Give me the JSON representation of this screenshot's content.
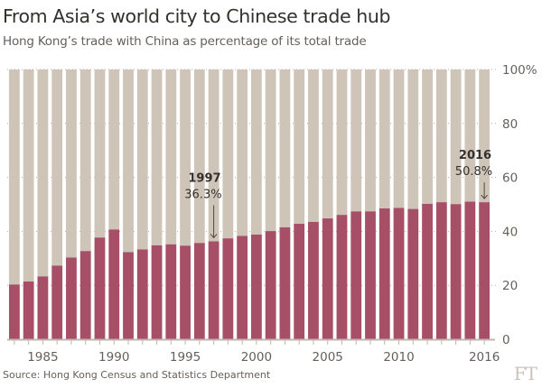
{
  "title": "From Asia’s world city to Chinese trade hub",
  "subtitle": "Hong Kong’s trade with China as percentage of its total trade",
  "source": "Source: Hong Kong Census and Statistics Department",
  "logo": "FT",
  "colors": {
    "china": "#a64f66",
    "rest": "#cec5b8",
    "axis": "#bfb7b0",
    "grid": "#b3aba4"
  },
  "chart_data": {
    "type": "bar",
    "stacked_to_100": true,
    "categories": [
      1983,
      1984,
      1985,
      1986,
      1987,
      1988,
      1989,
      1990,
      1991,
      1992,
      1993,
      1994,
      1995,
      1996,
      1997,
      1998,
      1999,
      2000,
      2001,
      2002,
      2003,
      2004,
      2005,
      2006,
      2007,
      2008,
      2009,
      2010,
      2011,
      2012,
      2013,
      2014,
      2015,
      2016
    ],
    "values": [
      20.3,
      21.4,
      23.3,
      27.3,
      30.3,
      32.7,
      37.7,
      40.7,
      32.3,
      33.3,
      34.8,
      35.2,
      34.7,
      35.7,
      36.3,
      37.4,
      38.3,
      38.8,
      40.1,
      41.5,
      42.8,
      43.5,
      44.8,
      46.1,
      47.4,
      47.4,
      48.5,
      48.7,
      48.3,
      50.2,
      50.8,
      50.1,
      51.0,
      50.8
    ],
    "ylim": [
      0,
      100
    ],
    "y_ticks": [
      "0",
      "20",
      "40",
      "60",
      "80",
      "100%"
    ],
    "x_ticks": [
      "1985",
      "1990",
      "1995",
      "2000",
      "2005",
      "2010",
      "2016"
    ],
    "annotations": [
      {
        "year": "1997",
        "value": "36.3%"
      },
      {
        "year": "2016",
        "value": "50.8%"
      }
    ],
    "grid": true,
    "y_axis_side": "right"
  }
}
